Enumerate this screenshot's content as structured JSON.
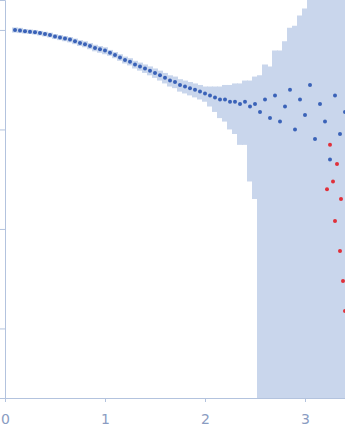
{
  "chart_data": {
    "type": "scatter",
    "log": "y",
    "tick_labels": "x",
    "xlim": [
      0,
      3.4
    ],
    "xticks": [
      0,
      1,
      2,
      3
    ],
    "ylim": [
      0.0002,
      2
    ],
    "yticks": [
      0.001,
      0.01,
      0.1,
      1
    ],
    "series": [
      {
        "color": "#3a62b8",
        "marker": "circle",
        "x": [
          0.1,
          0.15,
          0.2,
          0.25,
          0.3,
          0.35,
          0.4,
          0.45,
          0.5,
          0.55,
          0.6,
          0.65,
          0.7,
          0.75,
          0.8,
          0.85,
          0.9,
          0.95,
          1.0,
          1.05,
          1.1,
          1.15,
          1.2,
          1.25,
          1.3,
          1.35,
          1.4,
          1.45,
          1.5,
          1.55,
          1.6,
          1.65,
          1.7,
          1.75,
          1.8,
          1.85,
          1.9,
          1.95,
          2.0,
          2.05,
          2.1,
          2.15,
          2.2,
          2.25,
          2.3,
          2.35,
          2.4,
          2.45,
          2.5,
          2.55,
          2.6,
          2.65,
          2.7,
          2.75,
          2.8,
          2.85,
          2.9,
          2.95,
          3.0,
          3.05,
          3.1,
          3.15,
          3.2,
          3.25,
          3.3,
          3.35,
          3.4
        ],
        "values": [
          1.0,
          0.99,
          0.97,
          0.96,
          0.95,
          0.93,
          0.91,
          0.89,
          0.86,
          0.84,
          0.82,
          0.8,
          0.77,
          0.74,
          0.72,
          0.69,
          0.66,
          0.64,
          0.62,
          0.59,
          0.56,
          0.53,
          0.5,
          0.48,
          0.45,
          0.43,
          0.41,
          0.39,
          0.37,
          0.35,
          0.33,
          0.31,
          0.3,
          0.28,
          0.27,
          0.26,
          0.25,
          0.24,
          0.23,
          0.22,
          0.21,
          0.2,
          0.2,
          0.19,
          0.19,
          0.18,
          0.19,
          0.17,
          0.18,
          0.15,
          0.2,
          0.13,
          0.22,
          0.12,
          0.17,
          0.25,
          0.1,
          0.2,
          0.14,
          0.28,
          0.08,
          0.18,
          0.12,
          0.05,
          0.22,
          0.09,
          0.15
        ],
        "errors": [
          0.06,
          0.06,
          0.05,
          0.05,
          0.05,
          0.05,
          0.05,
          0.05,
          0.05,
          0.05,
          0.05,
          0.05,
          0.05,
          0.05,
          0.05,
          0.05,
          0.05,
          0.05,
          0.05,
          0.04,
          0.04,
          0.04,
          0.04,
          0.04,
          0.04,
          0.04,
          0.04,
          0.04,
          0.04,
          0.04,
          0.04,
          0.04,
          0.04,
          0.04,
          0.04,
          0.04,
          0.04,
          0.04,
          0.04,
          0.05,
          0.06,
          0.07,
          0.08,
          0.09,
          0.1,
          0.11,
          0.12,
          0.14,
          0.16,
          0.2,
          0.25,
          0.3,
          0.4,
          0.5,
          0.6,
          0.8,
          1,
          1.2,
          1.5,
          1.8,
          2,
          2,
          2,
          2,
          2,
          2,
          2
        ]
      },
      {
        "color": "#e0303a",
        "marker": "circle",
        "x": [
          3.22,
          3.25,
          3.28,
          3.3,
          3.32,
          3.35,
          3.36,
          3.38,
          3.4
        ],
        "values": [
          0.025,
          0.07,
          0.03,
          0.012,
          0.045,
          0.006,
          0.02,
          0.003,
          0.0015
        ]
      }
    ]
  }
}
